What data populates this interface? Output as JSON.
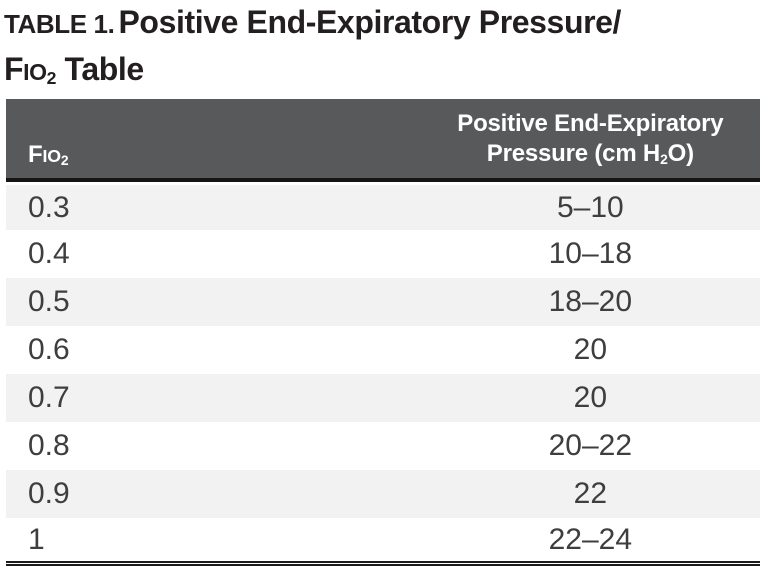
{
  "title": {
    "label": "TABLE 1.",
    "line1_rest": "Positive End-Expiratory Pressure/",
    "fio": {
      "f": "F",
      "io": "IO",
      "sub": "2"
    },
    "line2_rest": " Table"
  },
  "table": {
    "header": {
      "col1": {
        "f": "F",
        "io": "IO",
        "sub": "2"
      },
      "col2": {
        "line1": "Positive End-Expiratory",
        "line2_pre": "Pressure (cm H",
        "line2_sub": "2",
        "line2_post": "O)"
      }
    },
    "rows": [
      {
        "fio2": "0.3",
        "peep": "5–10"
      },
      {
        "fio2": "0.4",
        "peep": "10–18"
      },
      {
        "fio2": "0.5",
        "peep": "18–20"
      },
      {
        "fio2": "0.6",
        "peep": "20"
      },
      {
        "fio2": "0.7",
        "peep": "20"
      },
      {
        "fio2": "0.8",
        "peep": "20–22"
      },
      {
        "fio2": "0.9",
        "peep": "22"
      },
      {
        "fio2": "1",
        "peep": "22–24"
      }
    ]
  },
  "colors": {
    "header_bg": "#58595b",
    "header_text": "#ffffff",
    "row_alt_bg": "#f2f2f3",
    "row_bg": "#ffffff",
    "rule_black": "#151515",
    "title_text": "#231f20",
    "data_text": "#3e3e40"
  },
  "chart_data": {
    "type": "table",
    "title": "TABLE 1. Positive End-Expiratory Pressure/FIO2 Table",
    "columns": [
      "FIO2",
      "Positive End-Expiratory Pressure (cm H2O)"
    ],
    "categories": [
      "0.3",
      "0.4",
      "0.5",
      "0.6",
      "0.7",
      "0.8",
      "0.9",
      "1"
    ],
    "values": [
      "5–10",
      "10–18",
      "18–20",
      "20",
      "20",
      "20–22",
      "22",
      "22–24"
    ]
  }
}
